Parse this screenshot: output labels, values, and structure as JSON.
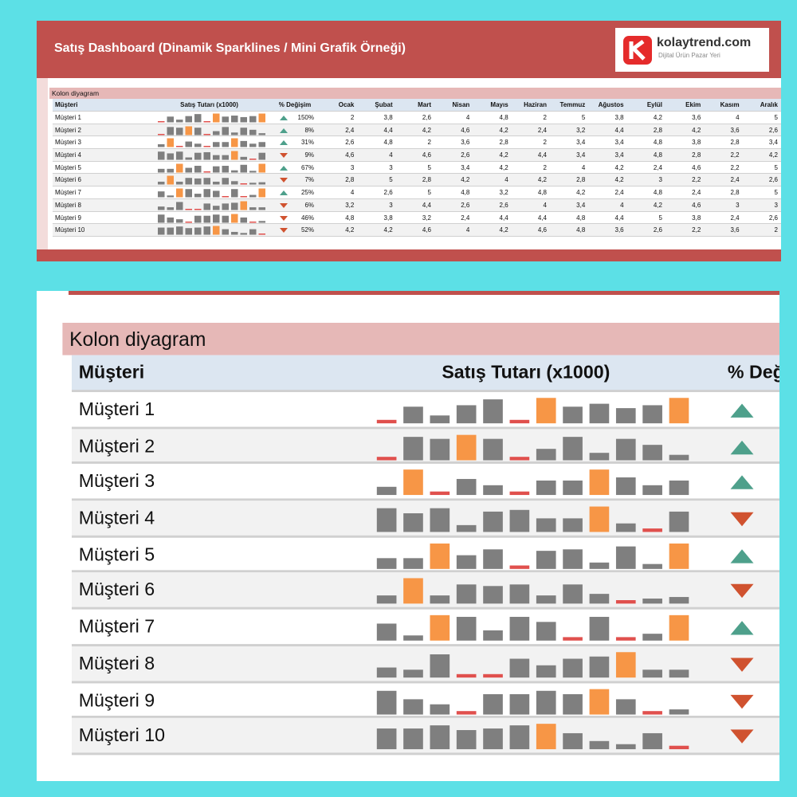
{
  "header": {
    "title": "Satış Dashboard (Dinamik Sparklines / Mini Grafik Örneği)",
    "logo": {
      "brand": "kolaytrend.com",
      "tagline": "Dijital Ürün Pazar Yeri"
    }
  },
  "table": {
    "section": "Kolon diyagram",
    "columns": {
      "customer": "Müşteri",
      "sparkline": "Satış Tutarı (x1000)",
      "change": "% Değişim",
      "months": [
        "Ocak",
        "Şubat",
        "Mart",
        "Nisan",
        "Mayıs",
        "Haziran",
        "Temmuz",
        "Ağustos",
        "Eylül",
        "Ekim",
        "Kasım",
        "Aralık"
      ]
    },
    "rows": [
      {
        "customer": "Müşteri 1",
        "change": "150%",
        "direction": "up",
        "values": [
          2,
          3.8,
          2.6,
          4,
          4.8,
          2,
          5,
          3.8,
          4.2,
          3.6,
          4,
          5
        ],
        "value_labels": [
          "2",
          "3,8",
          "2,6",
          "4",
          "4,8",
          "2",
          "5",
          "3,8",
          "4,2",
          "3,6",
          "4",
          "5"
        ]
      },
      {
        "customer": "Müşteri 2",
        "change": "8%",
        "direction": "up",
        "values": [
          2.4,
          4.4,
          4.2,
          4.6,
          4.2,
          2.4,
          3.2,
          4.4,
          2.8,
          4.2,
          3.6,
          2.6
        ],
        "value_labels": [
          "2,4",
          "4,4",
          "4,2",
          "4,6",
          "4,2",
          "2,4",
          "3,2",
          "4,4",
          "2,8",
          "4,2",
          "3,6",
          "2,6"
        ]
      },
      {
        "customer": "Müşteri 3",
        "change": "31%",
        "direction": "up",
        "values": [
          2.6,
          4.8,
          2,
          3.6,
          2.8,
          2,
          3.4,
          3.4,
          4.8,
          3.8,
          2.8,
          3.4
        ],
        "value_labels": [
          "2,6",
          "4,8",
          "2",
          "3,6",
          "2,8",
          "2",
          "3,4",
          "3,4",
          "4,8",
          "3,8",
          "2,8",
          "3,4"
        ]
      },
      {
        "customer": "Müşteri 4",
        "change": "9%",
        "direction": "down",
        "values": [
          4.6,
          4,
          4.6,
          2.6,
          4.2,
          4.4,
          3.4,
          3.4,
          4.8,
          2.8,
          2.2,
          4.2
        ],
        "value_labels": [
          "4,6",
          "4",
          "4,6",
          "2,6",
          "4,2",
          "4,4",
          "3,4",
          "3,4",
          "4,8",
          "2,8",
          "2,2",
          "4,2"
        ]
      },
      {
        "customer": "Müşteri 5",
        "change": "67%",
        "direction": "up",
        "values": [
          3,
          3,
          5,
          3.4,
          4.2,
          2,
          4,
          4.2,
          2.4,
          4.6,
          2.2,
          5
        ],
        "value_labels": [
          "3",
          "3",
          "5",
          "3,4",
          "4,2",
          "2",
          "4",
          "4,2",
          "2,4",
          "4,6",
          "2,2",
          "5"
        ]
      },
      {
        "customer": "Müşteri 6",
        "change": "7%",
        "direction": "down",
        "values": [
          2.8,
          5,
          2.8,
          4.2,
          4,
          4.2,
          2.8,
          4.2,
          3,
          2.2,
          2.4,
          2.6
        ],
        "value_labels": [
          "2,8",
          "5",
          "2,8",
          "4,2",
          "4",
          "4,2",
          "2,8",
          "4,2",
          "3",
          "2,2",
          "2,4",
          "2,6"
        ]
      },
      {
        "customer": "Müşteri 7",
        "change": "25%",
        "direction": "up",
        "values": [
          4,
          2.6,
          5,
          4.8,
          3.2,
          4.8,
          4.2,
          2.4,
          4.8,
          2.4,
          2.8,
          5
        ],
        "value_labels": [
          "4",
          "2,6",
          "5",
          "4,8",
          "3,2",
          "4,8",
          "4,2",
          "2,4",
          "4,8",
          "2,4",
          "2,8",
          "5"
        ]
      },
      {
        "customer": "Müşteri 8",
        "change": "6%",
        "direction": "down",
        "values": [
          3.2,
          3,
          4.4,
          2.6,
          2.6,
          4,
          3.4,
          4,
          4.2,
          4.6,
          3,
          3
        ],
        "value_labels": [
          "3,2",
          "3",
          "4,4",
          "2,6",
          "2,6",
          "4",
          "3,4",
          "4",
          "4,2",
          "4,6",
          "3",
          "3"
        ]
      },
      {
        "customer": "Müşteri 9",
        "change": "46%",
        "direction": "down",
        "values": [
          4.8,
          3.8,
          3.2,
          2.4,
          4.4,
          4.4,
          4.8,
          4.4,
          5,
          3.8,
          2.4,
          2.6
        ],
        "value_labels": [
          "4,8",
          "3,8",
          "3,2",
          "2,4",
          "4,4",
          "4,4",
          "4,8",
          "4,4",
          "5",
          "3,8",
          "2,4",
          "2,6"
        ]
      },
      {
        "customer": "Müşteri 10",
        "change": "52%",
        "direction": "down",
        "values": [
          4.2,
          4.2,
          4.6,
          4,
          4.2,
          4.6,
          4.8,
          3.6,
          2.6,
          2.2,
          3.6,
          2
        ],
        "value_labels": [
          "4,2",
          "4,2",
          "4,6",
          "4",
          "4,2",
          "4,6",
          "4,8",
          "3,6",
          "2,6",
          "2,2",
          "3,6",
          "2"
        ]
      }
    ]
  }
}
